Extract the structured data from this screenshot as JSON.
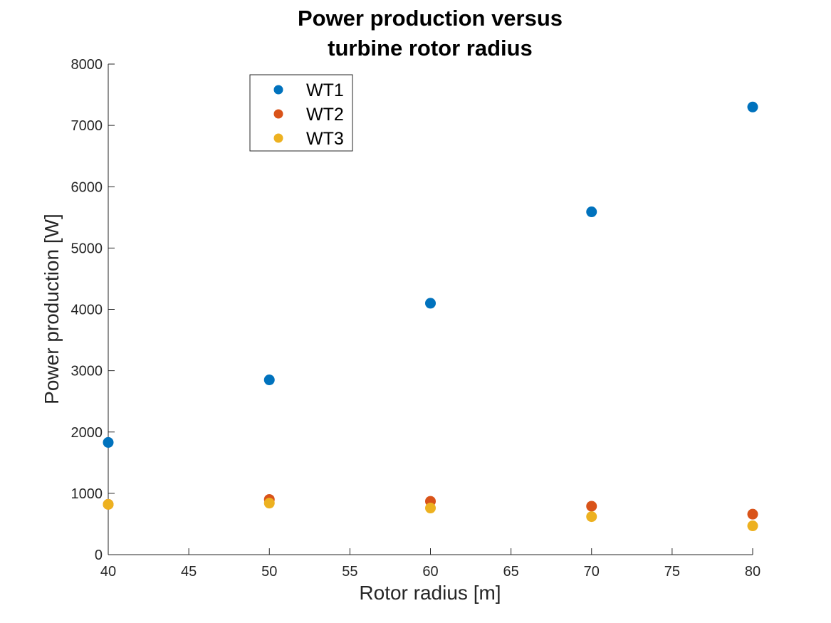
{
  "chart_data": {
    "type": "scatter",
    "title": [
      "Power production versus",
      "turbine rotor radius"
    ],
    "xlabel": "Rotor radius [m]",
    "ylabel": "Power production [W]",
    "xlim": [
      40,
      80
    ],
    "ylim": [
      0,
      8000
    ],
    "xticks": [
      40,
      45,
      50,
      55,
      60,
      65,
      70,
      75,
      80
    ],
    "yticks": [
      0,
      1000,
      2000,
      3000,
      4000,
      5000,
      6000,
      7000,
      8000
    ],
    "grid": false,
    "legend_position": "top-left",
    "x": [
      40,
      50,
      60,
      70,
      80
    ],
    "series": [
      {
        "name": "WT1",
        "color": "#0072BD",
        "values": [
          1830,
          2850,
          4100,
          5590,
          7300
        ]
      },
      {
        "name": "WT2",
        "color": "#D95319",
        "values": [
          820,
          900,
          870,
          790,
          660
        ]
      },
      {
        "name": "WT3",
        "color": "#EDB120",
        "values": [
          820,
          840,
          760,
          620,
          470
        ]
      }
    ]
  }
}
